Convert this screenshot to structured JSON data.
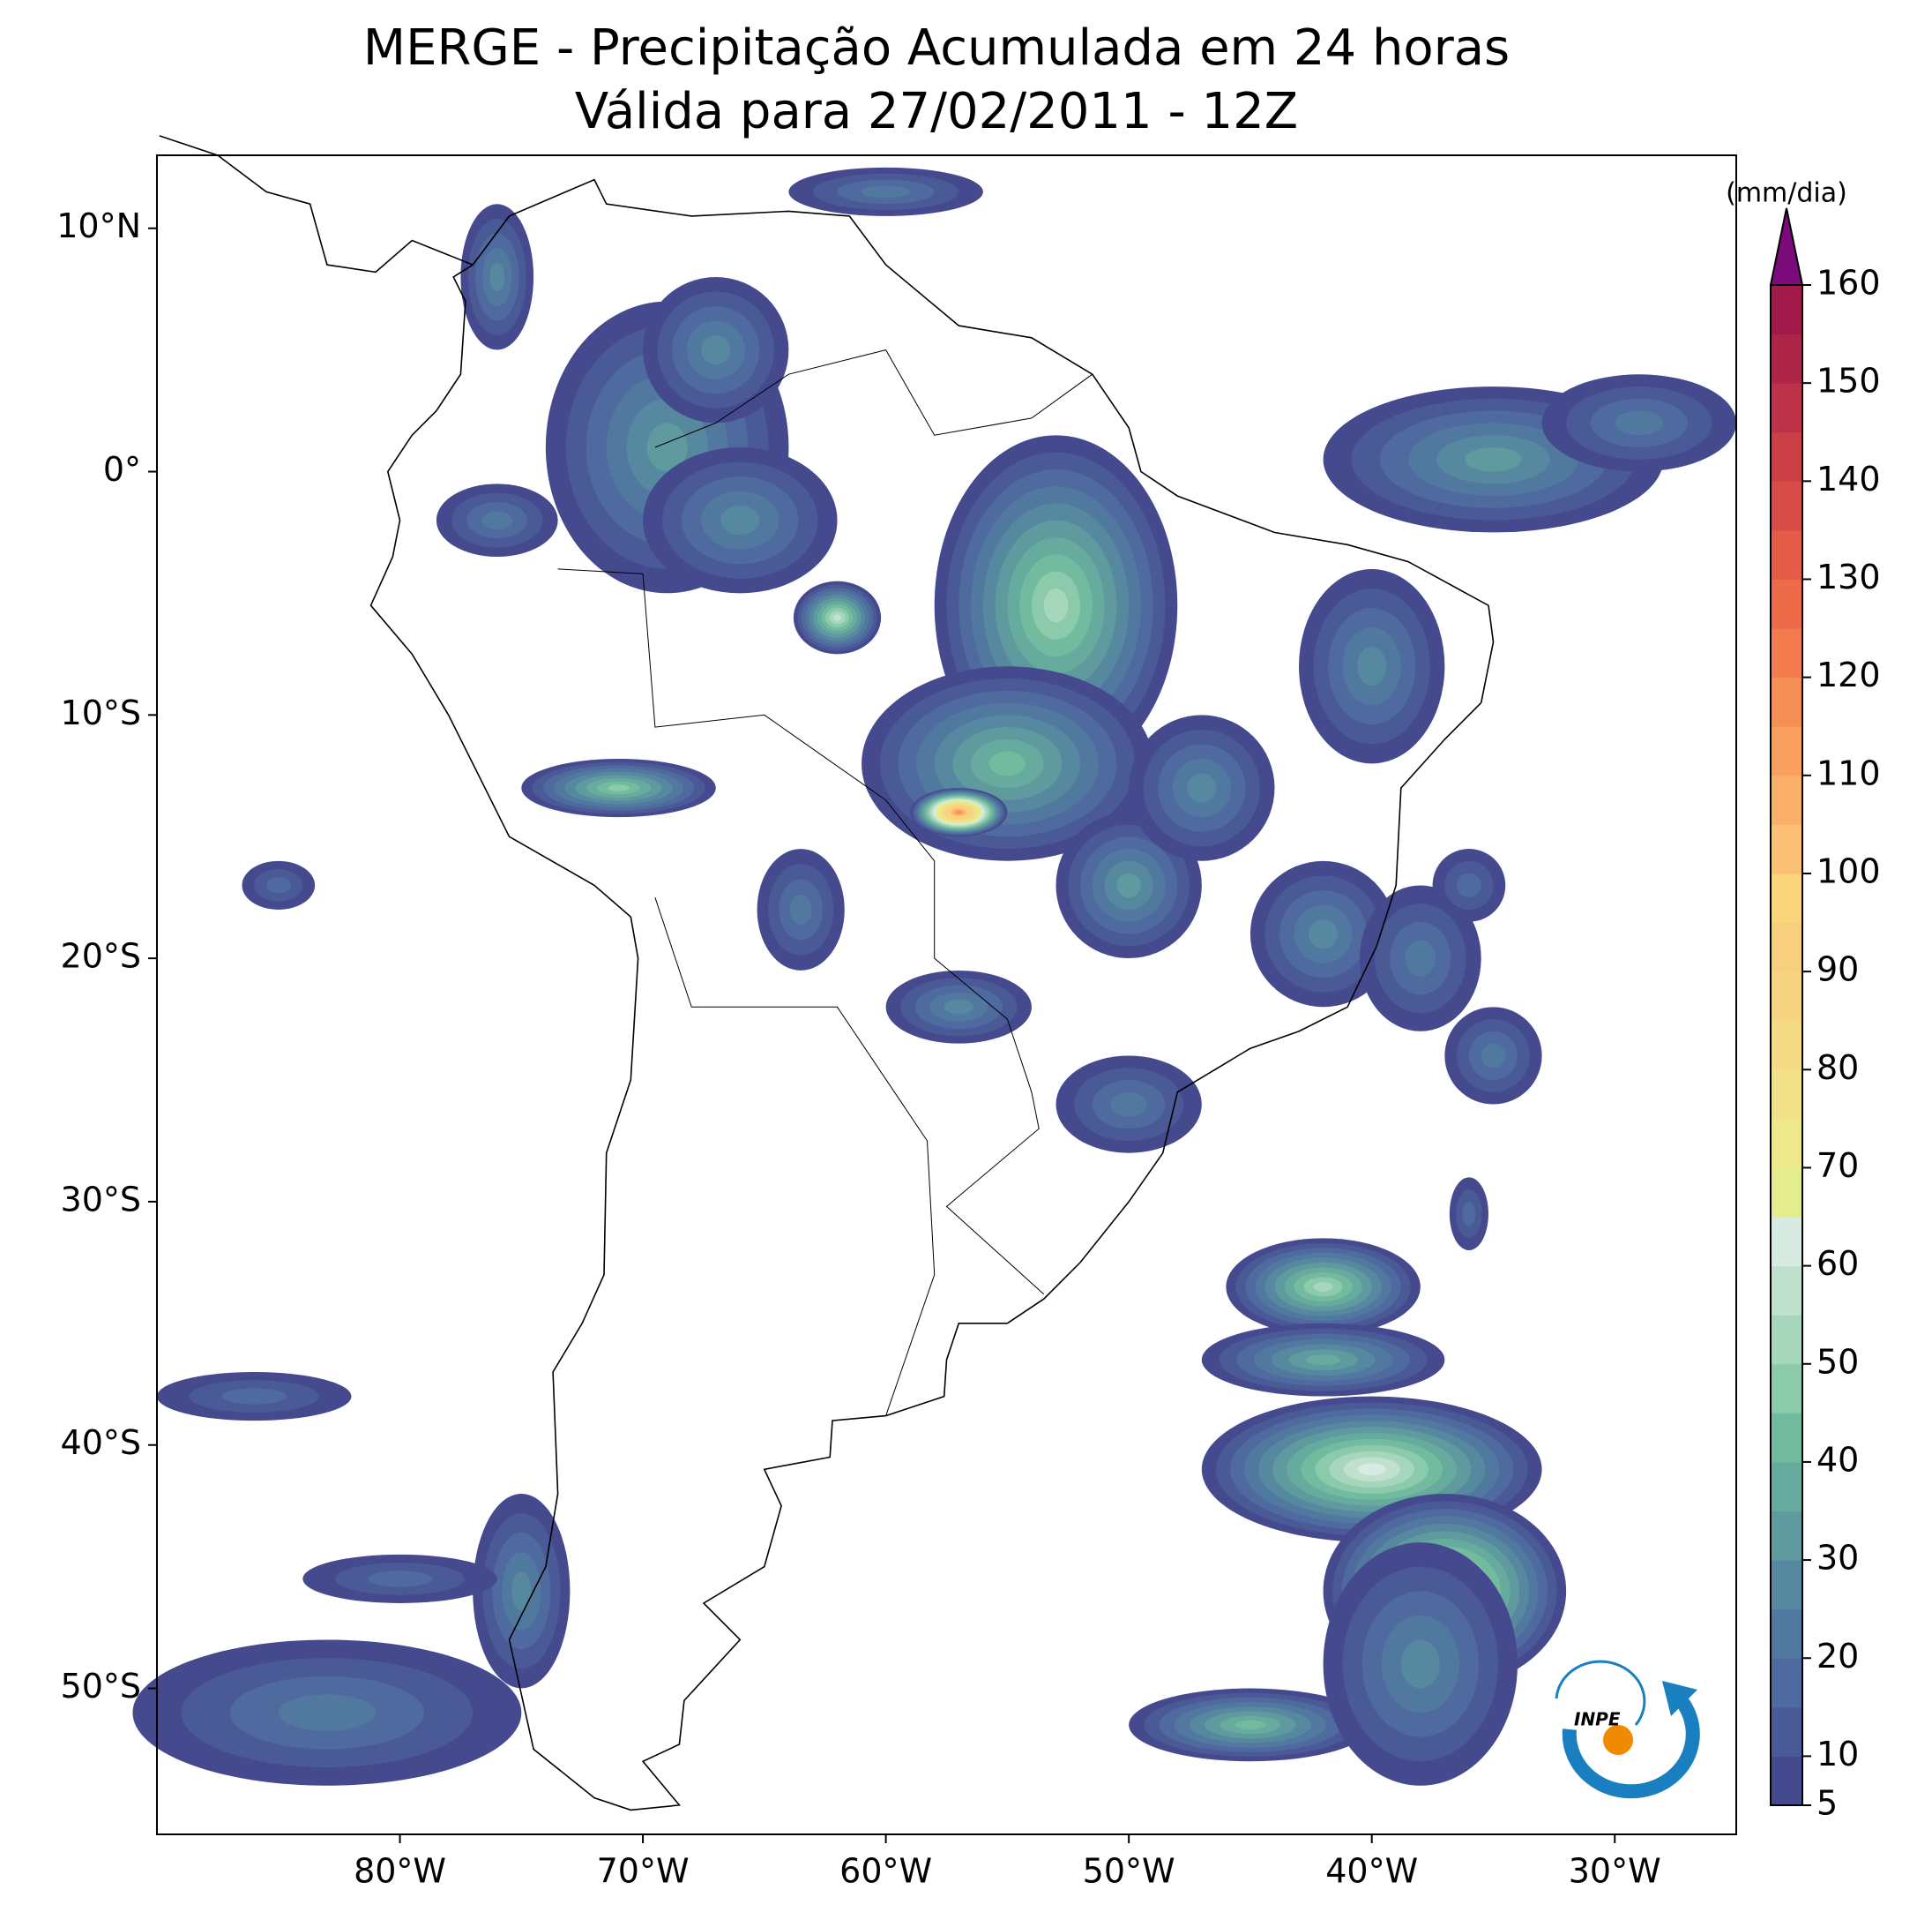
{
  "chart_data": {
    "type": "map",
    "title": "MERGE - Precipitação Acumulada em 24 horas",
    "subtitle": "Válida para 27/02/2011 - 12Z",
    "xlim": [
      -90,
      -25
    ],
    "ylim": [
      -56,
      13
    ],
    "xticks": [
      {
        "value": -80,
        "label": "80°W"
      },
      {
        "value": -70,
        "label": "70°W"
      },
      {
        "value": -60,
        "label": "60°W"
      },
      {
        "value": -50,
        "label": "50°W"
      },
      {
        "value": -40,
        "label": "40°W"
      },
      {
        "value": -30,
        "label": "30°W"
      }
    ],
    "yticks": [
      {
        "value": 10,
        "label": "10°N"
      },
      {
        "value": 0,
        "label": "0°"
      },
      {
        "value": -10,
        "label": "10°S"
      },
      {
        "value": -20,
        "label": "20°S"
      },
      {
        "value": -30,
        "label": "30°S"
      },
      {
        "value": -40,
        "label": "40°S"
      },
      {
        "value": -50,
        "label": "50°S"
      }
    ],
    "colorbar": {
      "label": "(mm/dia)",
      "bounds": [
        5,
        10,
        15,
        20,
        25,
        30,
        35,
        40,
        45,
        50,
        55,
        60,
        65,
        70,
        75,
        80,
        85,
        90,
        95,
        100,
        105,
        110,
        115,
        120,
        125,
        130,
        135,
        140,
        145,
        150,
        155,
        160
      ],
      "colors": [
        "#454a8e",
        "#4a5a96",
        "#4f6a9e",
        "#5179a0",
        "#56899f",
        "#5e9a9e",
        "#66ab9d",
        "#73bb9f",
        "#8ccaac",
        "#a6d6bb",
        "#bfe1cd",
        "#d8ebe2",
        "#e3ed8f",
        "#ede88a",
        "#f2e187",
        "#f5db84",
        "#f7d47f",
        "#f8cf7c",
        "#fad57b",
        "#fcc074",
        "#fbb06a",
        "#f9a05f",
        "#f68f56",
        "#f27c4e",
        "#ee6b49",
        "#e45c47",
        "#d84c47",
        "#cb3f47",
        "#bd3149",
        "#ad2549",
        "#a01a4a"
      ],
      "extend_color": "#7b0a7b",
      "ticks": [
        5,
        10,
        20,
        30,
        40,
        50,
        60,
        70,
        80,
        90,
        100,
        110,
        120,
        130,
        140,
        150,
        160
      ]
    },
    "logo_text": "INPE"
  }
}
